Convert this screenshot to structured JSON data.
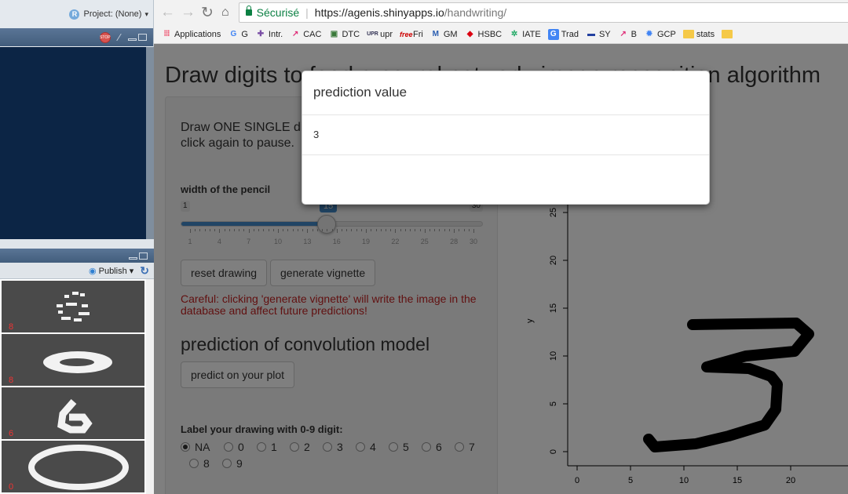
{
  "ide": {
    "project_label": "Project: (None)",
    "publish_label": "Publish",
    "vignettes": [
      {
        "label": "8"
      },
      {
        "label": "8"
      },
      {
        "label": "6"
      },
      {
        "label": "0"
      }
    ]
  },
  "browser": {
    "secure_label": "Sécurisé",
    "url_host": "https://agenis.shinyapps.io",
    "url_path": "/handwriting/",
    "bookmarks": [
      {
        "label": "Applications",
        "icon": "apps-grid-icon"
      },
      {
        "label": "G",
        "icon": "google-icon"
      },
      {
        "label": "Intr.",
        "icon": "puzzle-icon"
      },
      {
        "label": "CAC",
        "icon": "arrow-logo-icon"
      },
      {
        "label": "DTC",
        "icon": "doc-icon"
      },
      {
        "label": "upr",
        "icon": "upr-icon"
      },
      {
        "label": "Fri",
        "icon": "free-icon"
      },
      {
        "label": "GM",
        "icon": "gmail-icon"
      },
      {
        "label": "HSBC",
        "icon": "hsbc-icon"
      },
      {
        "label": "IATE",
        "icon": "eu-icon"
      },
      {
        "label": "Trad",
        "icon": "translate-icon"
      },
      {
        "label": "SY",
        "icon": "flag-icon"
      },
      {
        "label": "B",
        "icon": "arrow-logo-icon"
      },
      {
        "label": "GCP",
        "icon": "chip-icon"
      },
      {
        "label": "stats",
        "icon": "folder-icon"
      }
    ]
  },
  "app": {
    "title": "Draw digits to feed a neural network: image recognition algorithm",
    "instructions": "Draw ONE SINGLE digit: Click on plot to start drawing, click again to pause.",
    "pencil_label": "width of the pencil",
    "slider": {
      "min": 1,
      "max": 30,
      "value": 15,
      "grid": [
        "1",
        "4",
        "7",
        "10",
        "13",
        "16",
        "19",
        "22",
        "25",
        "28",
        "30"
      ]
    },
    "reset_button": "reset drawing",
    "vignette_button": "generate vignette",
    "warning": "Careful: clicking 'generate vignette' will write the image in the database and affect future predictions!",
    "model_heading": "prediction of convolution model",
    "predict_button": "predict on your plot",
    "label_heading": "Label your drawing with 0-9 digit:",
    "radio_options": [
      "NA",
      "0",
      "1",
      "2",
      "3",
      "4",
      "5",
      "6",
      "7",
      "8",
      "9"
    ],
    "radio_selected": "NA"
  },
  "plot": {
    "y_label": "y",
    "x_ticks": [
      "0",
      "5",
      "10",
      "15",
      "20"
    ],
    "y_ticks": [
      "0",
      "5",
      "10",
      "15",
      "20",
      "25"
    ]
  },
  "modal": {
    "title": "prediction value",
    "value": "3"
  }
}
